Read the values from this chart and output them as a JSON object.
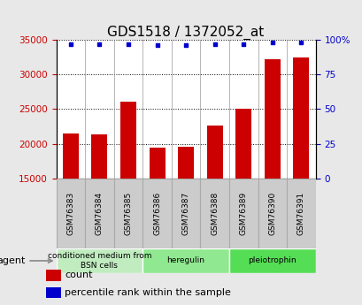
{
  "title": "GDS1518 / 1372052_at",
  "samples": [
    "GSM76383",
    "GSM76384",
    "GSM76385",
    "GSM76386",
    "GSM76387",
    "GSM76388",
    "GSM76389",
    "GSM76390",
    "GSM76391"
  ],
  "counts": [
    21500,
    21300,
    26000,
    19500,
    19600,
    22600,
    25100,
    32200,
    32400
  ],
  "percentiles": [
    97,
    97,
    97,
    96,
    96,
    97,
    97,
    98,
    98
  ],
  "ylim_left": [
    15000,
    35000
  ],
  "ylim_right": [
    0,
    100
  ],
  "yticks_left": [
    15000,
    20000,
    25000,
    30000,
    35000
  ],
  "yticks_right": [
    0,
    25,
    50,
    75,
    100
  ],
  "bar_color": "#cc0000",
  "dot_color": "#0000cc",
  "groups": [
    {
      "label": "conditioned medium from\nBSN cells",
      "start": 0,
      "end": 3,
      "color": "#c0ecc0"
    },
    {
      "label": "heregulin",
      "start": 3,
      "end": 6,
      "color": "#90e890"
    },
    {
      "label": "pleiotrophin",
      "start": 6,
      "end": 9,
      "color": "#55dd55"
    }
  ],
  "agent_label": "agent",
  "legend_count_label": "count",
  "legend_pct_label": "percentile rank within the sample",
  "fig_bg": "#e8e8e8",
  "plot_bg": "#ffffff",
  "cell_bg": "#c8c8c8",
  "title_fontsize": 11,
  "bar_width": 0.55
}
